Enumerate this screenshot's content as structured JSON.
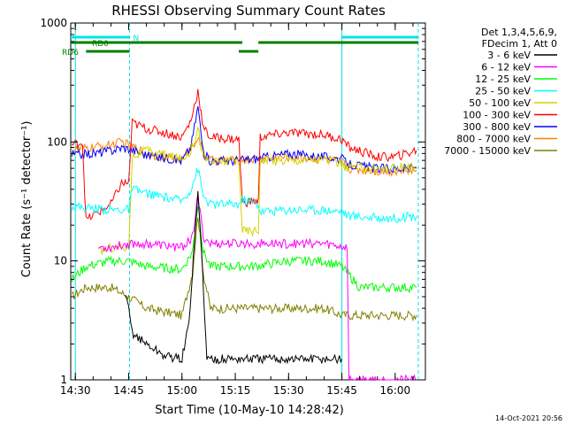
{
  "title": "RHESSI Observing Summary Count Rates",
  "footer_date": "14-Oct-2021 20:56",
  "chart_data": {
    "type": "line",
    "title": "RHESSI Observing Summary Count Rates",
    "xlabel": "Start Time (10-May-10 14:28:42)",
    "ylabel": "Count Rate (s⁻¹ detector⁻¹)",
    "y_scale": "log",
    "ylim": [
      1,
      1000
    ],
    "xlim": [
      "14:28:42",
      "16:08:30"
    ],
    "x_ticks": [
      "14:30",
      "14:45",
      "15:00",
      "15:15",
      "15:30",
      "15:45",
      "16:00"
    ],
    "y_ticks": [
      "1",
      "10",
      "100",
      "1000"
    ],
    "legend_header": [
      "Det 1,3,4,5,6,9,",
      "FDecim 1, Att 0"
    ],
    "legend_position": "right",
    "flags": [
      {
        "name": "N",
        "color": "#00e5e5",
        "intervals": [
          [
            "14:28:42",
            "14:45:15"
          ],
          [
            "15:45:00",
            "16:06:30"
          ]
        ]
      },
      {
        "name": "RD0",
        "color": "#008000",
        "intervals": [
          [
            "14:28:42",
            "15:17:00"
          ],
          [
            "15:21:30",
            "16:06:30"
          ]
        ]
      },
      {
        "name": "RD6",
        "color": "#008000",
        "intervals": [
          [
            "14:33:00",
            "14:45:15"
          ],
          [
            "15:16:00",
            "15:21:30"
          ]
        ]
      }
    ],
    "vlines": [
      {
        "time": "14:30:00",
        "color": "#00e5e5",
        "style": "solid"
      },
      {
        "time": "14:45:15",
        "color": "#00e5e5",
        "style": "dashed"
      },
      {
        "time": "15:45:00",
        "color": "#00e5e5",
        "style": "solid"
      },
      {
        "time": "16:06:30",
        "color": "#00e5e5",
        "style": "dashed"
      }
    ],
    "series": [
      {
        "name": "3 - 6 keV",
        "color": "#000000",
        "x": [
          "14:44:00",
          "14:45:00",
          "14:46:00",
          "14:50:00",
          "14:55:00",
          "15:00:00",
          "15:02:00",
          "15:03:30",
          "15:04:30",
          "15:05:30",
          "15:07:00",
          "15:10:00",
          "15:16:00",
          "15:20:00",
          "15:30:00",
          "15:40:00",
          "15:45:00"
        ],
        "values": [
          5,
          4,
          2.5,
          2,
          1.6,
          1.5,
          3,
          15,
          37,
          12,
          1.5,
          1.5,
          1.5,
          1.5,
          1.5,
          1.5,
          1.5
        ]
      },
      {
        "name": "6 - 12 keV",
        "color": "#ff00ff",
        "x": [
          "14:36:30",
          "14:40:00",
          "14:45:00",
          "14:50:00",
          "15:00:00",
          "15:03:00",
          "15:04:30",
          "15:06:00",
          "15:08:00",
          "15:15:00",
          "15:20:00",
          "15:30:00",
          "15:40:00",
          "15:46:30",
          "15:47:00",
          "16:06:00"
        ],
        "values": [
          13,
          13,
          14,
          14,
          13,
          16,
          35,
          16,
          14,
          14,
          14,
          14,
          14,
          13,
          1,
          1
        ]
      },
      {
        "name": "12 - 25 keV",
        "color": "#00ff00",
        "x": [
          "14:29:00",
          "14:33:00",
          "14:40:00",
          "14:45:00",
          "14:50:00",
          "15:00:00",
          "15:03:00",
          "15:04:30",
          "15:06:00",
          "15:08:00",
          "15:15:00",
          "15:20:00",
          "15:30:00",
          "15:40:00",
          "15:45:00",
          "15:50:00",
          "16:00:00",
          "16:06:00"
        ],
        "values": [
          7,
          9,
          10,
          10,
          9,
          8.5,
          12,
          30,
          12,
          9,
          9,
          9,
          10,
          10,
          9,
          6,
          6,
          6
        ]
      },
      {
        "name": "25 - 50 keV",
        "color": "#00ffff",
        "x": [
          "14:29:00",
          "14:33:00",
          "14:40:00",
          "14:45:00",
          "14:46:00",
          "14:50:00",
          "15:00:00",
          "15:02:30",
          "15:04:30",
          "15:06:00",
          "15:08:00",
          "15:16:00",
          "15:17:00",
          "15:21:30",
          "15:22:00",
          "15:30:00",
          "15:40:00",
          "15:45:00",
          "15:47:00",
          "15:55:00",
          "16:00:00",
          "16:06:00"
        ],
        "values": [
          29,
          28,
          27,
          27,
          40,
          37,
          32,
          40,
          60,
          35,
          30,
          30,
          33,
          30,
          26,
          27,
          27,
          26,
          24,
          23,
          23,
          24
        ]
      },
      {
        "name": "50 - 100 keV",
        "color": "#d4d400",
        "x": [
          "14:36:30",
          "14:40:00",
          "14:45:00",
          "14:46:00",
          "14:50:00",
          "15:00:00",
          "15:02:30",
          "15:04:30",
          "15:06:00",
          "15:08:00",
          "15:16:00",
          "15:17:00",
          "15:21:30",
          "15:22:00",
          "15:30:00",
          "15:40:00",
          "15:45:00",
          "15:46:30",
          "15:47:00",
          "15:55:00",
          "16:06:00"
        ],
        "values": [
          12,
          13,
          13,
          75,
          85,
          72,
          85,
          130,
          75,
          68,
          70,
          18,
          18,
          70,
          70,
          72,
          65,
          60,
          62,
          60,
          62
        ]
      },
      {
        "name": "100 - 300 keV",
        "color": "#ff0000",
        "x": [
          "14:29:00",
          "14:32:00",
          "14:33:00",
          "14:40:00",
          "14:43:00",
          "14:45:00",
          "14:46:00",
          "14:50:00",
          "14:55:00",
          "15:00:00",
          "15:02:30",
          "15:04:30",
          "15:06:00",
          "15:08:00",
          "15:16:00",
          "15:17:00",
          "15:21:30",
          "15:22:00",
          "15:30:00",
          "15:40:00",
          "15:45:00",
          "15:47:00",
          "15:55:00",
          "16:00:00",
          "16:06:00"
        ],
        "values": [
          95,
          100,
          22,
          30,
          45,
          45,
          145,
          130,
          120,
          110,
          150,
          270,
          130,
          110,
          105,
          31,
          32,
          110,
          120,
          115,
          105,
          90,
          75,
          75,
          85
        ]
      },
      {
        "name": "300 - 800 keV",
        "color": "#0000ff",
        "x": [
          "14:29:00",
          "14:35:00",
          "14:40:00",
          "14:43:00",
          "14:45:00",
          "14:50:00",
          "15:00:00",
          "15:02:30",
          "15:04:30",
          "15:06:00",
          "15:08:00",
          "15:15:00",
          "15:20:00",
          "15:30:00",
          "15:40:00",
          "15:45:00",
          "15:47:00",
          "15:55:00",
          "16:00:00",
          "16:06:00"
        ],
        "values": [
          78,
          80,
          85,
          90,
          88,
          78,
          70,
          90,
          200,
          80,
          70,
          70,
          72,
          80,
          75,
          72,
          65,
          60,
          60,
          60
        ]
      },
      {
        "name": "800 - 7000 keV",
        "color": "#ff8000",
        "x": [
          "14:29:00",
          "14:35:00",
          "14:40:00",
          "14:43:00",
          "14:45:00",
          "14:50:00",
          "15:00:00",
          "15:02:30",
          "15:04:30",
          "15:06:00",
          "15:08:00",
          "15:15:00",
          "15:20:00",
          "15:30:00",
          "15:40:00",
          "15:45:00",
          "15:47:00",
          "15:55:00",
          "16:00:00",
          "16:06:00"
        ],
        "values": [
          85,
          90,
          95,
          100,
          95,
          80,
          70,
          90,
          110,
          80,
          70,
          70,
          72,
          75,
          72,
          68,
          60,
          57,
          57,
          58
        ]
      },
      {
        "name": "7000 - 15000 keV",
        "color": "#808000",
        "x": [
          "14:29:00",
          "14:33:00",
          "14:40:00",
          "14:45:00",
          "14:50:00",
          "15:00:00",
          "15:03:00",
          "15:04:30",
          "15:06:00",
          "15:08:00",
          "15:15:00",
          "15:20:00",
          "15:30:00",
          "15:40:00",
          "15:45:00",
          "15:50:00",
          "16:00:00",
          "16:06:00"
        ],
        "values": [
          5,
          6,
          6,
          5,
          4,
          3.5,
          8,
          25,
          8,
          4,
          4,
          4,
          4,
          4,
          3.5,
          3.5,
          3.5,
          3.5
        ]
      }
    ]
  }
}
